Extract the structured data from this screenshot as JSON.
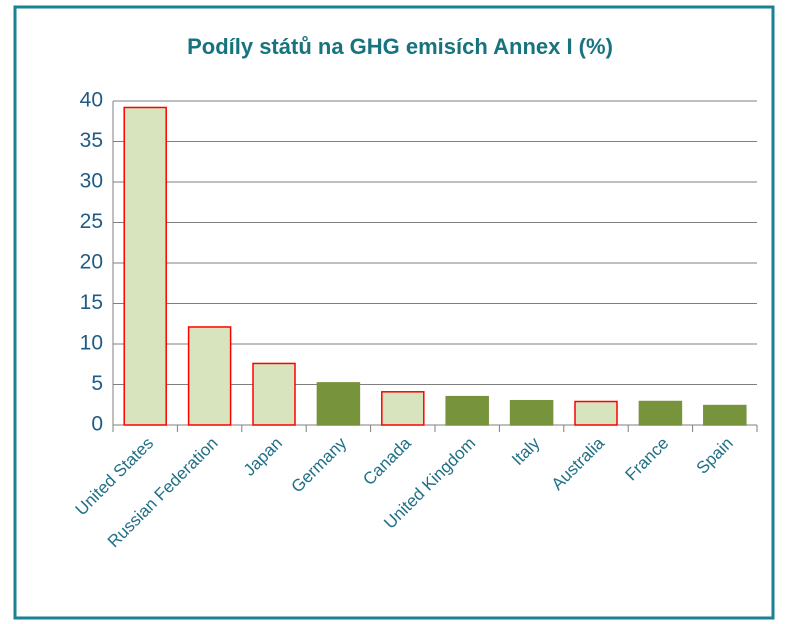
{
  "chart_data": {
    "type": "bar",
    "title": "Podíly států na GHG emisích Annex I (%)",
    "categories": [
      "United States",
      "Russian Federation",
      "Japan",
      "Germany",
      "Canada",
      "United Kingdom",
      "Italy",
      "Australia",
      "France",
      "Spain"
    ],
    "values": [
      39.2,
      12.1,
      7.6,
      5.2,
      4.1,
      3.5,
      3.0,
      2.9,
      2.9,
      2.4
    ],
    "colors": [
      "#d7e4bd",
      "#d7e4bd",
      "#d7e4bd",
      "#77933c",
      "#d7e4bd",
      "#77933c",
      "#77933c",
      "#d7e4bd",
      "#77933c",
      "#77933c"
    ],
    "edge_colors": [
      "#ff0000",
      "#ff0000",
      "#ff0000",
      "#77933c",
      "#ff0000",
      "#77933c",
      "#77933c",
      "#ff0000",
      "#77933c",
      "#77933c"
    ],
    "ylim": [
      0,
      40
    ],
    "yticks": [
      0,
      5,
      10,
      15,
      20,
      25,
      30,
      35,
      40
    ],
    "grid": true
  }
}
